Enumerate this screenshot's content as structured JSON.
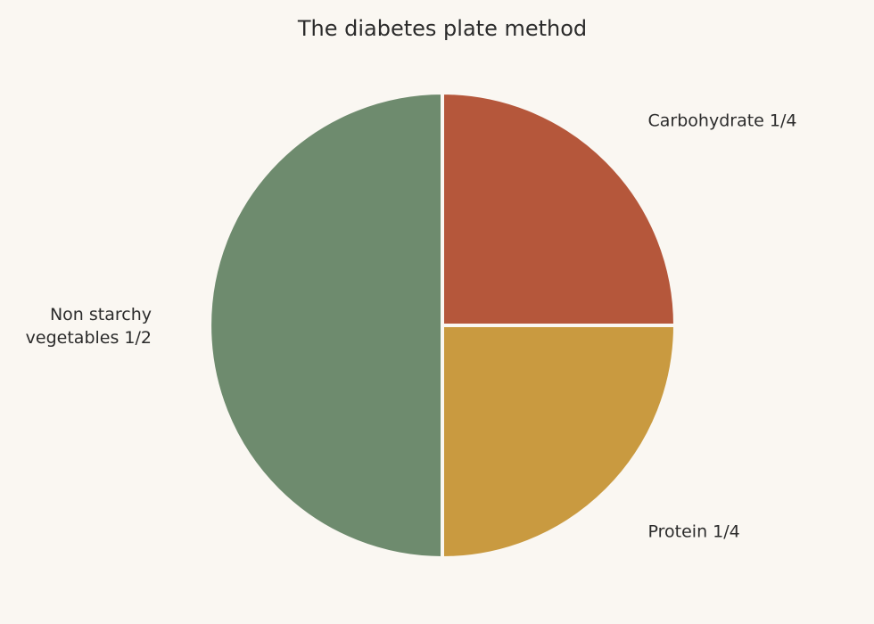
{
  "chart_data": {
    "type": "pie",
    "title": "The diabetes plate method",
    "start_angle_deg": 90,
    "direction": "clockwise",
    "slice_separator_color": "#faf7f2",
    "background_color": "#faf7f2",
    "slices": [
      {
        "label_lines": [
          "Carbohydrate 1/4"
        ],
        "value": 0.25,
        "color": "#b5573b"
      },
      {
        "label_lines": [
          "Protein 1/4"
        ],
        "value": 0.25,
        "color": "#c99a40"
      },
      {
        "label_lines": [
          "Non starchy",
          "vegetables 1/2"
        ],
        "value": 0.5,
        "color": "#6e8b6e"
      }
    ]
  }
}
